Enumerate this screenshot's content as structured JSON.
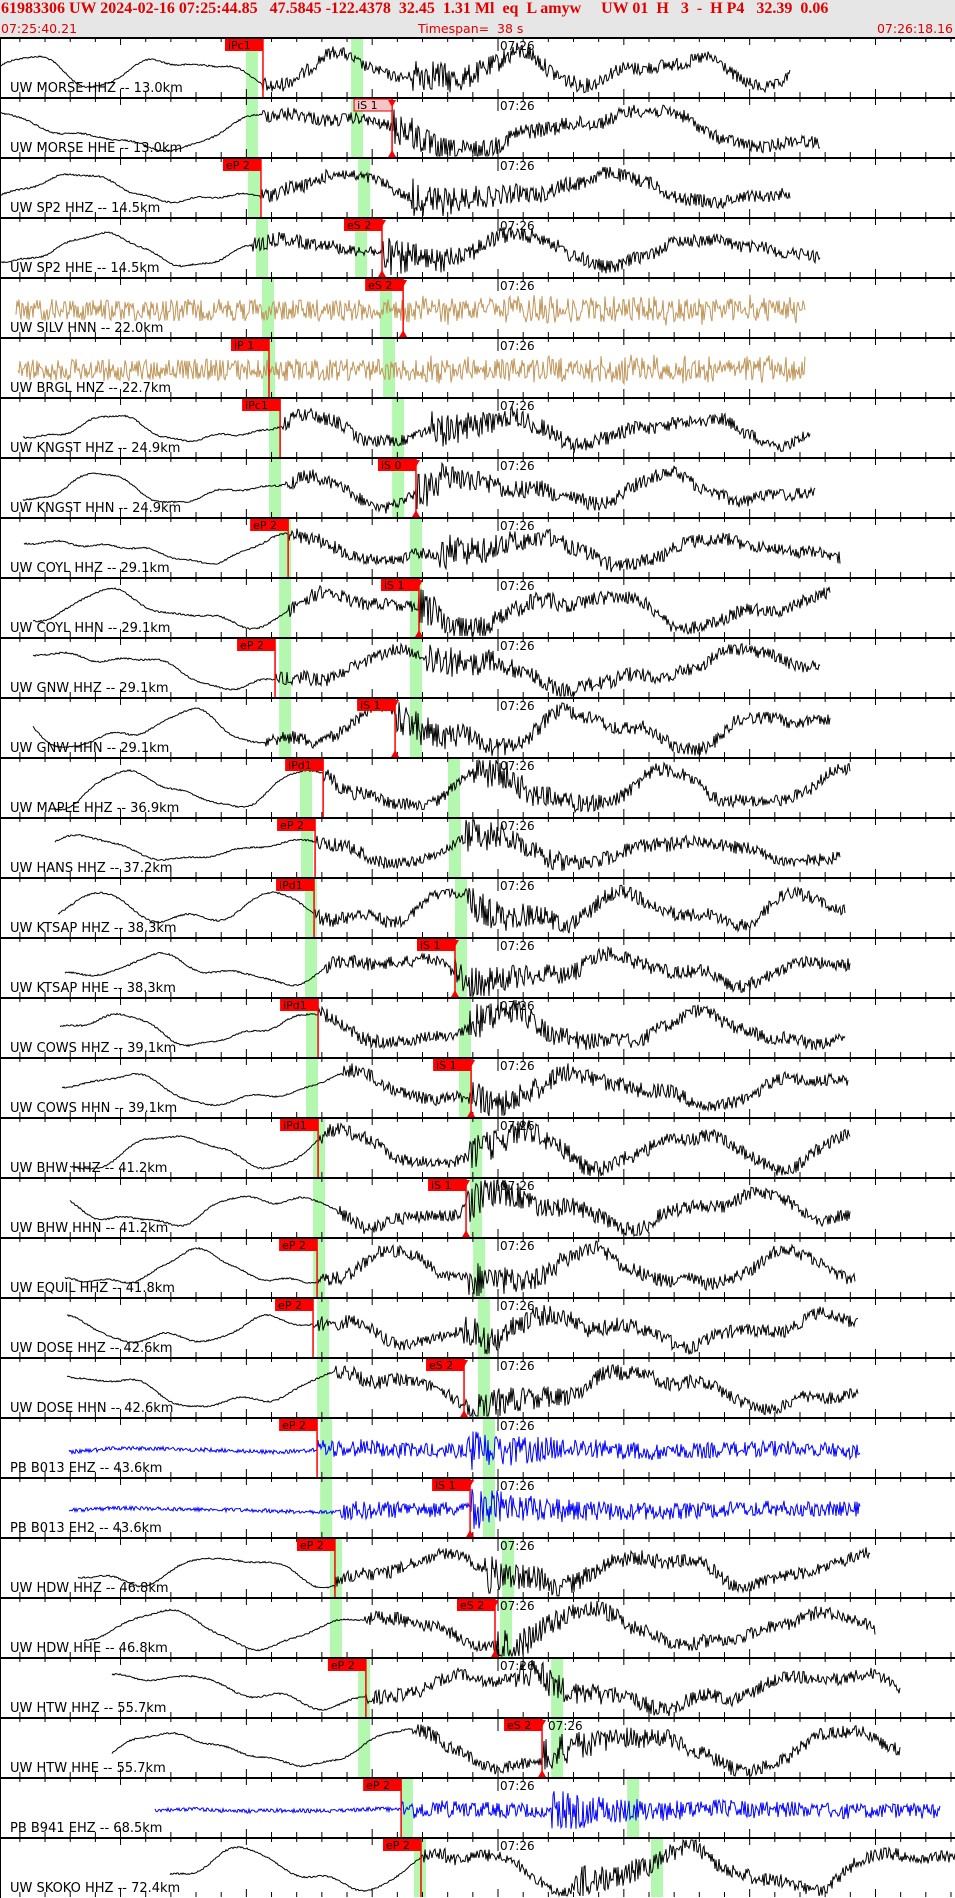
{
  "header": {
    "event_line": "61983306 UW 2024-02-16 07:25:44.85   47.5845 -122.4378  32.45  1.31 Ml  eq  L amyw     UW 01  H   3  -  H P4   32.39  0.06",
    "start_time": "07:25:40.21",
    "timespan": "Timespan=  38 s",
    "end_time": "07:26:18.16"
  },
  "colors": {
    "header_text": "#e00000",
    "pick": "#ff0000",
    "pick_highlight": "#f6c4c4",
    "predicted_window": "#b4f8b0",
    "trace_default": "#000000",
    "trace_strong_motion": "#c0965a",
    "trace_pb": "#0000ff"
  },
  "chart_data": {
    "type": "line",
    "title": "",
    "time_range": [
      "07:25:40.21",
      "07:26:18.16"
    ],
    "minute_label": "07:26",
    "traces": [
      {
        "label": "UW MORSE HHZ -- 13.0km",
        "color": "black",
        "pick": {
          "label": "iPc1",
          "time": "07:25:50.66"
        },
        "window_p": "07:25:50.22",
        "window_s": "07:25:54.40"
      },
      {
        "label": "UW MORSE HHE -- 13.0km",
        "color": "black",
        "pick": {
          "label": "iS 1",
          "time": "07:25:55.79",
          "highlight": true
        },
        "window_p": "07:25:50.22",
        "window_s": "07:25:54.40"
      },
      {
        "label": "UW SP2 HHZ -- 14.5km",
        "color": "black",
        "pick": {
          "label": "eP 2",
          "time": "07:25:50.58"
        },
        "window_p": "07:25:50.30",
        "window_s": "07:25:54.68"
      },
      {
        "label": "UW SP2 HHE -- 14.5km",
        "color": "black",
        "pick": {
          "label": "eS 2",
          "time": "07:25:55.39"
        },
        "window_p": "07:25:50.62",
        "window_s": "07:25:54.56"
      },
      {
        "label": "UW SILV HNN -- 22.0km",
        "color": "tan",
        "pick": {
          "label": "eS 2",
          "time": "07:25:56.23"
        },
        "window_p": "07:25:50.86",
        "window_s": "07:25:55.55"
      },
      {
        "label": "UW BRGL HNZ -- 22.7km",
        "color": "tan",
        "pick": {
          "label": "iP 1",
          "time": "07:25:50.90"
        },
        "window_p": "07:25:50.90",
        "window_s": "07:25:55.67"
      },
      {
        "label": "UW KNGST HHZ -- 24.9km",
        "color": "black",
        "pick": {
          "label": "iPc1",
          "time": "07:25:51.34"
        },
        "window_p": "07:25:51.14",
        "window_s": "07:25:56.03"
      },
      {
        "label": "UW KNGST HHN -- 24.9km",
        "color": "black",
        "pick": {
          "label": "iS 0",
          "time": "07:25:56.74"
        },
        "window_p": "07:25:51.14",
        "window_s": "07:25:56.03"
      },
      {
        "label": "UW COYL HHZ -- 29.1km",
        "color": "black",
        "pick": {
          "label": "eP 2",
          "time": "07:25:51.66"
        },
        "window_p": "07:25:51.54",
        "window_s": "07:25:56.74"
      },
      {
        "label": "UW COYL HHN -- 29.1km",
        "color": "black",
        "pick": {
          "label": "iS 1",
          "time": "07:25:56.86"
        },
        "window_p": "07:25:51.54",
        "window_s": "07:25:56.74"
      },
      {
        "label": "UW GNW HHZ -- 29.1km",
        "color": "black",
        "pick": {
          "label": "eP 2",
          "time": "07:25:51.14"
        },
        "window_p": "07:25:51.54",
        "window_s": "07:25:56.74"
      },
      {
        "label": "UW GNW HHN -- 29.1km",
        "color": "black",
        "pick": {
          "label": "iS 1",
          "time": "07:25:55.91"
        },
        "window_p": "07:25:51.54",
        "window_s": "07:25:56.74"
      },
      {
        "label": "UW MAPLE HHZ -- 36.9km",
        "color": "black",
        "pick": {
          "label": "iPd1",
          "time": "07:25:53.05"
        },
        "window_p": "07:25:52.37",
        "window_s": "07:25:58.25"
      },
      {
        "label": "UW HANS HHZ -- 37.2km",
        "color": "black",
        "pick": {
          "label": "eP 2",
          "time": "07:25:52.73"
        },
        "window_p": "07:25:52.41",
        "window_s": "07:25:58.29"
      },
      {
        "label": "UW KTSAP HHZ -- 38.3km",
        "color": "black",
        "pick": {
          "label": "iPd1",
          "time": "07:25:52.69"
        },
        "window_p": "07:25:52.57",
        "window_s": "07:25:58.53"
      },
      {
        "label": "UW KTSAP HHE -- 38.3km",
        "color": "black",
        "pick": {
          "label": "iS 1",
          "time": "07:25:58.29"
        },
        "window_p": "07:25:52.57",
        "window_s": "07:25:58.53"
      },
      {
        "label": "UW COWS HHZ -- 39.1km",
        "color": "black",
        "pick": {
          "label": "iPd1",
          "time": "07:25:52.85"
        },
        "window_p": "07:25:52.61",
        "window_s": "07:25:58.69"
      },
      {
        "label": "UW COWS HHN -- 39.1km",
        "color": "black",
        "pick": {
          "label": "iS 1",
          "time": "07:25:58.93"
        },
        "window_p": "07:25:52.61",
        "window_s": "07:25:58.69"
      },
      {
        "label": "UW BHW HHZ -- 41.2km",
        "color": "black",
        "pick": {
          "label": "iPd1",
          "time": "07:25:52.85"
        },
        "window_p": "07:25:52.89",
        "window_s": "07:25:59.13"
      },
      {
        "label": "UW BHW HHN -- 41.2km",
        "color": "black",
        "pick": {
          "label": "iS 1",
          "time": "07:25:58.73"
        },
        "window_p": "07:25:52.89",
        "window_s": "07:25:59.13"
      },
      {
        "label": "UW EQUIL HHZ -- 41.8km",
        "color": "black",
        "pick": {
          "label": "eP 2",
          "time": "07:25:52.81"
        },
        "window_p": "07:25:52.89",
        "window_s": "07:25:59.25"
      },
      {
        "label": "UW DOSE HHZ -- 42.6km",
        "color": "black",
        "pick": {
          "label": "eP 2",
          "time": "07:25:52.65"
        },
        "window_p": "07:25:53.05",
        "window_s": "07:25:59.44"
      },
      {
        "label": "UW DOSE HHN -- 42.6km",
        "color": "black",
        "pick": {
          "label": "eS 2",
          "time": "07:25:58.65"
        },
        "window_p": "07:25:53.05",
        "window_s": "07:25:59.44"
      },
      {
        "label": "PB B013 EHZ -- 43.6km",
        "color": "blue",
        "pick": {
          "label": "eP 2",
          "time": "07:25:52.81"
        },
        "window_p": "07:25:53.17",
        "window_s": "07:25:59.64"
      },
      {
        "label": "PB B013 EH2 -- 43.6km",
        "color": "blue",
        "pick": {
          "label": "iS 1",
          "time": "07:25:58.89"
        },
        "window_p": "07:25:53.17",
        "window_s": "07:25:59.64"
      },
      {
        "label": "UW HDW HHZ -- 46.8km",
        "color": "black",
        "pick": {
          "label": "eP 2",
          "time": "07:25:53.52"
        },
        "window_p": "07:25:53.56",
        "window_s": "07:26:00.40"
      },
      {
        "label": "UW HDW HHE -- 46.8km",
        "color": "black",
        "pick": {
          "label": "eS 2",
          "time": "07:25:59.88"
        },
        "window_p": "07:25:53.56",
        "window_s": "07:26:00.32"
      },
      {
        "label": "UW HTW HHZ -- 55.7km",
        "color": "black",
        "pick": {
          "label": "eP 2",
          "time": "07:25:54.75"
        },
        "window_p": "07:25:54.68",
        "window_s": "07:26:02.35"
      },
      {
        "label": "UW HTW HHE -- 55.7km",
        "color": "black",
        "pick": {
          "label": "eS 2",
          "time": "07:26:01.75"
        },
        "window_p": "07:25:54.68",
        "window_s": "07:26:02.35"
      },
      {
        "label": "PB B941 EHZ -- 68.5km",
        "color": "blue",
        "pick": {
          "label": "eP 2",
          "time": "07:25:56.15"
        },
        "window_p": "07:25:56.38",
        "window_s": "07:26:05.37"
      },
      {
        "label": "UW SKOKO HHZ -- 72.4km",
        "color": "black",
        "pick": {
          "label": "eP 2",
          "time": "07:25:56.94"
        },
        "window_p": "07:25:56.90",
        "window_s": "07:26:06.32"
      }
    ]
  }
}
